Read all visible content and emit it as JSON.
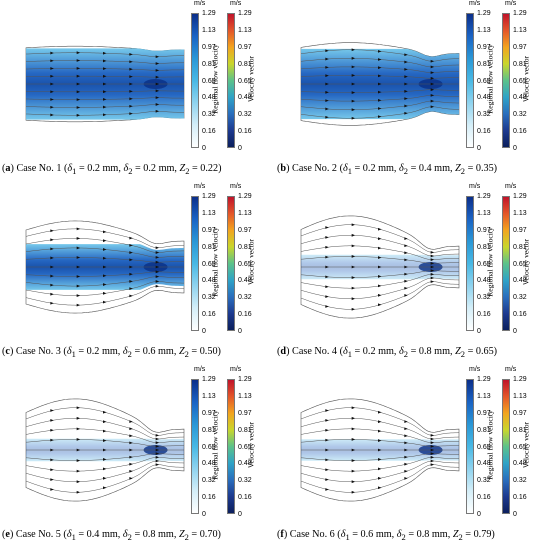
{
  "unit": "m/s",
  "scale_ticks": [
    "1.29",
    "1.13",
    "0.97",
    "0.81",
    "0.65",
    "0.48",
    "0.32",
    "0.16",
    "0"
  ],
  "scale_titles": {
    "regional": "Regional flow velocity",
    "vector": "Velocity vector"
  },
  "colors": {
    "regional_gradient": [
      "#0b2f8a",
      "#1a63c4",
      "#2a97d6",
      "#48b8e4",
      "#8fd3ef",
      "#d4eef8",
      "#ffffff"
    ],
    "vector_gradient": [
      "#c0132a",
      "#e3562a",
      "#f2a41f",
      "#c9d62c",
      "#5cc28a",
      "#2fa3c7",
      "#2a6ebd",
      "#1d3a8f",
      "#0b1f5c"
    ],
    "flow_dark": "#1a5fbf",
    "flow_light": "#6fc6ea",
    "streamline": "#555555"
  },
  "cases": [
    {
      "tag": "a",
      "pre": "Case No. 1 (",
      "d1": "= 0.2 mm,",
      "d2": "= 0.2 mm,",
      "z2": "= 0.22)",
      "amp": 0.05,
      "center": 0.95,
      "fill": 0.96
    },
    {
      "tag": "b",
      "pre": "Case No. 2 (",
      "d1": "= 0.2 mm,",
      "d2": "= 0.4 mm,",
      "z2": "= 0.35)",
      "amp": 0.15,
      "center": 0.86,
      "fill": 0.95
    },
    {
      "tag": "c",
      "pre": "Case No. 3 (",
      "d1": "= 0.2 mm,",
      "d2": "= 0.6 mm,",
      "z2": "= 0.50)",
      "amp": 0.28,
      "center": 0.82,
      "fill": 0.7
    },
    {
      "tag": "d",
      "pre": "Case No. 4 (",
      "d1": "= 0.2 mm,",
      "d2": "= 0.8 mm,",
      "z2": "= 0.65)",
      "amp": 0.42,
      "center": 0.72,
      "fill": 0.18
    },
    {
      "tag": "e",
      "pre": "Case No. 5 (",
      "d1": "= 0.4 mm,",
      "d2": "= 0.8 mm,",
      "z2": "= 0.70)",
      "amp": 0.42,
      "center": 0.72,
      "fill": 0.14
    },
    {
      "tag": "f",
      "pre": "Case No. 6 (",
      "d1": "= 0.6 mm,",
      "d2": "= 0.8 mm,",
      "z2": "= 0.79)",
      "amp": 0.42,
      "center": 0.72,
      "fill": 0.12
    }
  ]
}
